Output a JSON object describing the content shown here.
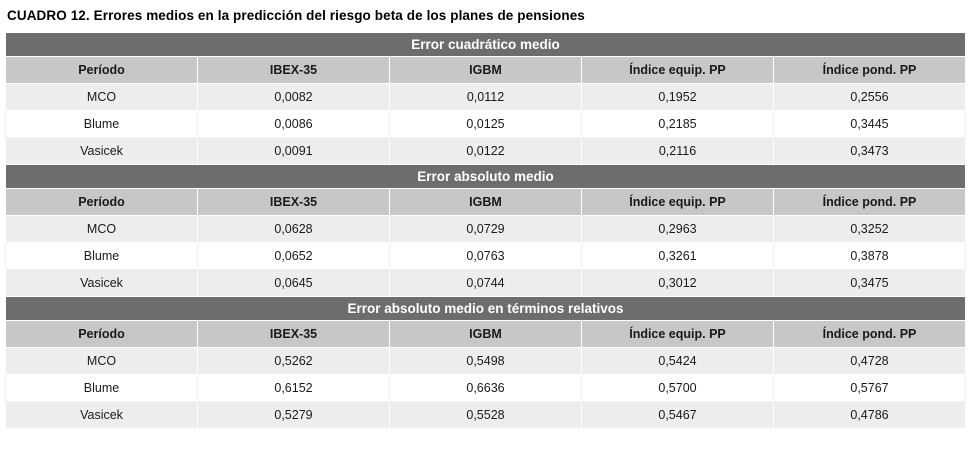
{
  "page_title": "CUADRO 12. Errores medios en la predicción del riesgo beta de los planes de pensiones",
  "columns": [
    "Período",
    "IBEX-35",
    "IGBM",
    "Índice equip. PP",
    "Índice pond. PP"
  ],
  "sections": [
    {
      "title": "Error cuadrático medio",
      "rows": [
        {
          "label": "MCO",
          "values": [
            "0,0082",
            "0,0112",
            "0,1952",
            "0,2556"
          ]
        },
        {
          "label": "Blume",
          "values": [
            "0,0086",
            "0,0125",
            "0,2185",
            "0,3445"
          ]
        },
        {
          "label": "Vasicek",
          "values": [
            "0,0091",
            "0,0122",
            "0,2116",
            "0,3473"
          ]
        }
      ]
    },
    {
      "title": "Error absoluto medio",
      "rows": [
        {
          "label": "MCO",
          "values": [
            "0,0628",
            "0,0729",
            "0,2963",
            "0,3252"
          ]
        },
        {
          "label": "Blume",
          "values": [
            "0,0652",
            "0,0763",
            "0,3261",
            "0,3878"
          ]
        },
        {
          "label": "Vasicek",
          "values": [
            "0,0645",
            "0,0744",
            "0,3012",
            "0,3475"
          ]
        }
      ]
    },
    {
      "title": "Error absoluto medio en términos relativos",
      "rows": [
        {
          "label": "MCO",
          "values": [
            "0,5262",
            "0,5498",
            "0,5424",
            "0,4728"
          ]
        },
        {
          "label": "Blume",
          "values": [
            "0,6152",
            "0,6636",
            "0,5700",
            "0,5767"
          ]
        },
        {
          "label": "Vasicek",
          "values": [
            "0,5279",
            "0,5528",
            "0,5467",
            "0,4786"
          ]
        }
      ]
    }
  ],
  "colors": {
    "section_bar": "#6d6d6d",
    "column_header_bg": "#c7c7c7",
    "row_alt_bg": "#ededed"
  }
}
